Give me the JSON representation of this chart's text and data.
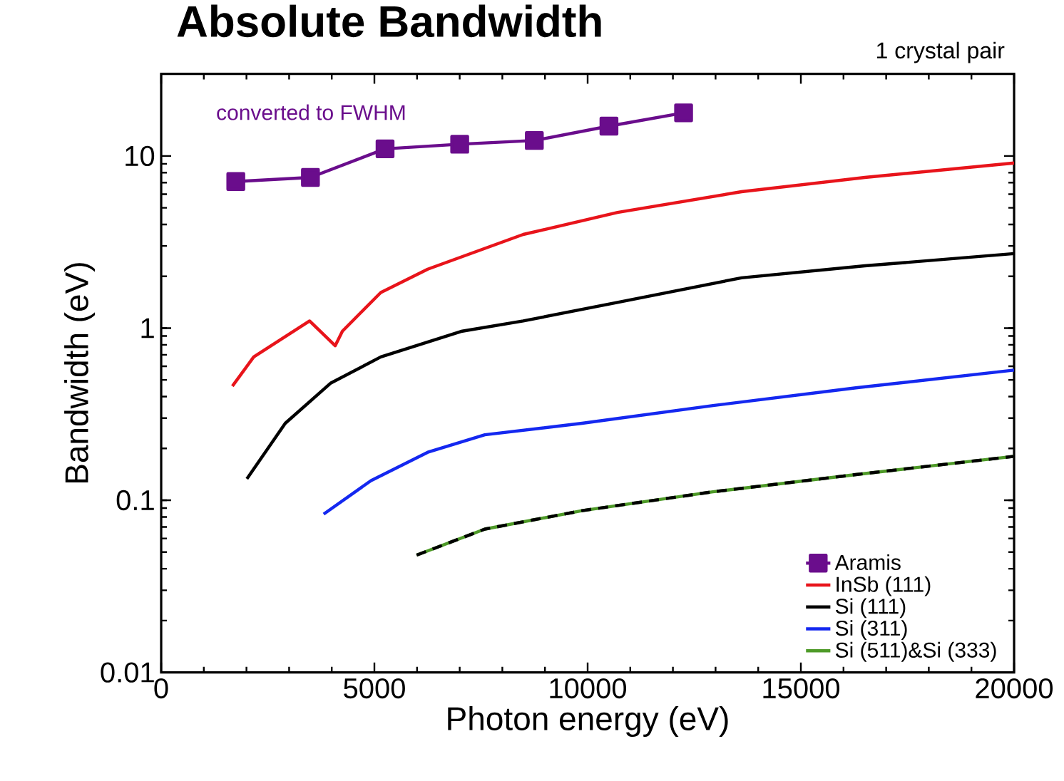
{
  "chart_data": {
    "type": "line",
    "title": "Absolute Bandwidth",
    "xlabel": "Photon energy (eV)",
    "ylabel": "Bandwidth  (eV)",
    "annotations": [
      "converted to FWHM",
      "1 crystal pair"
    ],
    "log": "y",
    "xlim": [
      0,
      20000
    ],
    "xticks": [
      0,
      5000,
      10000,
      15000,
      20000
    ],
    "ylim": [
      0.01,
      30
    ],
    "yticks": [
      0.01,
      0.1,
      1,
      10
    ],
    "legend": "bottom right",
    "grid": false,
    "series": [
      {
        "name": "Aramis",
        "color": "#6a0d8c",
        "marker": "square",
        "line_style": "solid",
        "x": [
          1750,
          3500,
          5250,
          7000,
          8750,
          10500,
          12250
        ],
        "values": [
          7.1,
          7.5,
          11.0,
          11.7,
          12.3,
          14.9,
          17.8
        ]
      },
      {
        "name": "InSb (111)",
        "color": "#e8141b",
        "marker": "none",
        "line_style": "solid",
        "x": [
          1670,
          2170,
          3480,
          4080,
          4250,
          4680,
          5150,
          6250,
          8490,
          10700,
          13610,
          16500,
          20000
        ],
        "values": [
          0.46,
          0.68,
          1.1,
          0.79,
          0.96,
          1.23,
          1.61,
          2.2,
          3.5,
          4.7,
          6.2,
          7.5,
          9.1
        ]
      },
      {
        "name": "Si (111)",
        "color": "#000000",
        "marker": "none",
        "line_style": "solid",
        "x": [
          2010,
          2910,
          3980,
          5150,
          7060,
          8490,
          10700,
          13610,
          16500,
          20000
        ],
        "values": [
          0.133,
          0.28,
          0.48,
          0.68,
          0.96,
          1.1,
          1.41,
          1.96,
          2.3,
          2.71
        ]
      },
      {
        "name": "Si (311)",
        "color": "#1428f0",
        "marker": "none",
        "line_style": "solid",
        "x": [
          3810,
          4920,
          6250,
          7590,
          9870,
          12940,
          16290,
          20000
        ],
        "values": [
          0.083,
          0.13,
          0.19,
          0.24,
          0.28,
          0.355,
          0.45,
          0.57
        ]
      },
      {
        "name": "Si (511)&Si (333)",
        "color": "#4e9a28",
        "marker": "none",
        "line_style": "solid",
        "x": [
          5990,
          7590,
          9870,
          12940,
          16290,
          20000
        ],
        "values": [
          0.048,
          0.068,
          0.087,
          0.112,
          0.141,
          0.18
        ]
      },
      {
        "color": "#000000",
        "marker": "none",
        "line_style": "dashed",
        "x": [
          5990,
          7590,
          9870,
          12940,
          16290,
          20000
        ],
        "values": [
          0.048,
          0.068,
          0.087,
          0.112,
          0.141,
          0.18
        ]
      }
    ]
  }
}
